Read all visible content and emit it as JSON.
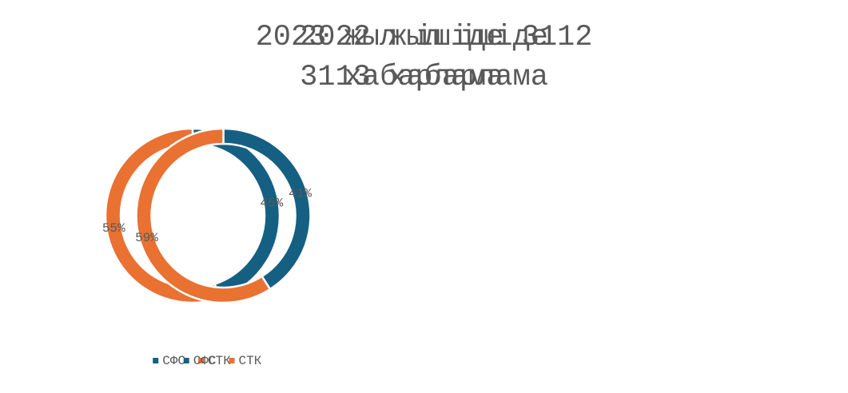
{
  "chart_data": [
    {
      "type": "donut",
      "title": "2022 жыл ішіде 3113 хабарлама",
      "categories": [
        "СФС",
        "СТК"
      ],
      "values": [
        45,
        55
      ],
      "value_labels": [
        "45%",
        "55%"
      ],
      "colors": [
        "#156082",
        "#e97132"
      ],
      "legend": "bottom"
    },
    {
      "type": "donut",
      "title": "2023 жыл ішіде 3112 хабарлама",
      "categories": [
        "СФС",
        "СТК"
      ],
      "values": [
        41,
        59
      ],
      "value_labels": [
        "41%",
        "59%"
      ],
      "colors": [
        "#156082",
        "#e97132"
      ],
      "legend": "bottom"
    }
  ]
}
